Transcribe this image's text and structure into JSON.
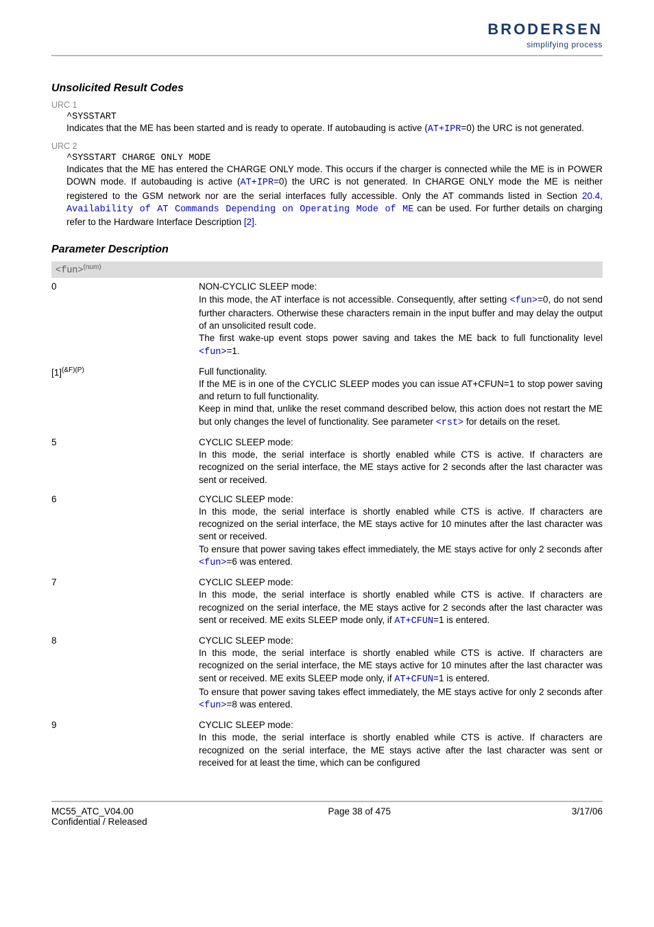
{
  "header": {
    "logo_main": "BRODERSEN",
    "logo_sub": "simplifying process"
  },
  "section_urc_title": "Unsolicited Result Codes",
  "urc1": {
    "label": "URC 1",
    "code": "^SYSSTART",
    "desc_pre": "Indicates that the ME has been started and is ready to operate. If autobauding is active (",
    "link": "AT+IPR",
    "desc_post": "=0) the URC is not generated."
  },
  "urc2": {
    "label": "URC 2",
    "code": "^SYSSTART CHARGE ONLY MODE",
    "p1_a": "Indicates that the ME has entered the CHARGE ONLY mode. This occurs if the charger is connected while the ME is in POWER DOWN mode. If autobauding is active (",
    "p1_link1": "AT+IPR",
    "p1_b": "=0) the URC is not generated. In CHARGE ONLY mode the ME is neither registered to the GSM network nor are the serial interfaces fully accessible. Only the AT commands listed in Section ",
    "p1_link2": "20.4",
    "p1_c": ", ",
    "p1_link3": "Availability of AT Commands Depending on Operating Mode of ME",
    "p1_d": " can be used. For further details on charging refer to the Hardware Interface Description ",
    "p1_link4": "[2]",
    "p1_e": "."
  },
  "section_param_title": "Parameter Description",
  "param_key": {
    "name": "<fun>",
    "sup": "(num)"
  },
  "rows": [
    {
      "left": "0",
      "parts": [
        {
          "t": "NON-CYCLIC SLEEP mode:"
        },
        {
          "br": true
        },
        {
          "t": "In this mode, the AT interface is not accessible. Consequently, after setting "
        },
        {
          "ml": "<fun>"
        },
        {
          "t": "=0, do not send further characters. Otherwise these characters remain in the input buffer and may delay the output of an unsolicited result code."
        },
        {
          "br": true
        },
        {
          "t": "The first wake-up event stops power saving and takes the ME back to full functionality level "
        },
        {
          "ml": "<fun>"
        },
        {
          "t": "=1."
        }
      ]
    },
    {
      "left": "[1]",
      "left_sup": "(&F)(P)",
      "parts": [
        {
          "t": "Full functionality."
        },
        {
          "br": true
        },
        {
          "t": "If the ME is in one of the CYCLIC SLEEP modes you can issue AT+CFUN=1 to stop power saving and return to full functionality."
        },
        {
          "br": true
        },
        {
          "t": "Keep in mind that, unlike the reset command described below, this action does not restart the ME but only changes the level of functionality. See parameter "
        },
        {
          "ml": "<rst>"
        },
        {
          "t": " for details on the reset."
        }
      ]
    },
    {
      "left": "5",
      "parts": [
        {
          "t": "CYCLIC SLEEP mode:"
        },
        {
          "br": true
        },
        {
          "t": "In this mode, the serial interface is shortly enabled while CTS is active. If characters are recognized on the serial interface, the ME stays active for 2 seconds after the last character was sent or received."
        }
      ]
    },
    {
      "left": "6",
      "parts": [
        {
          "t": "CYCLIC SLEEP mode:"
        },
        {
          "br": true
        },
        {
          "t": "In this mode, the serial interface is shortly enabled while CTS is active. If characters are recognized on the serial interface, the ME stays active for 10 minutes after the last character was sent or received."
        },
        {
          "br": true
        },
        {
          "t": "To ensure that power saving takes effect immediately, the ME stays active for only 2 seconds after "
        },
        {
          "ml": "<fun>"
        },
        {
          "t": "=6 was entered."
        }
      ]
    },
    {
      "left": "7",
      "parts": [
        {
          "t": "CYCLIC SLEEP mode:"
        },
        {
          "br": true
        },
        {
          "t": "In this mode, the serial interface is shortly enabled while CTS is active. If characters are recognized on the serial interface, the ME stays active for 2 seconds after the last character was sent or received. ME exits SLEEP mode only, if "
        },
        {
          "ml": "AT+CFUN"
        },
        {
          "t": "=1 is entered."
        }
      ]
    },
    {
      "left": "8",
      "parts": [
        {
          "t": "CYCLIC SLEEP mode:"
        },
        {
          "br": true
        },
        {
          "t": "In this mode, the serial interface is shortly enabled while CTS is active. If characters are recognized on the serial interface, the ME stays active for 10 minutes after the last character was sent or received. ME exits SLEEP mode only, if "
        },
        {
          "ml": "AT+CFUN"
        },
        {
          "t": "=1 is entered."
        },
        {
          "br": true
        },
        {
          "t": "To ensure that power saving takes effect immediately, the ME stays active for only 2 seconds after "
        },
        {
          "ml": "<fun>"
        },
        {
          "t": "=8 was entered."
        }
      ]
    },
    {
      "left": "9",
      "parts": [
        {
          "t": "CYCLIC SLEEP mode:"
        },
        {
          "br": true
        },
        {
          "t": "In this mode, the serial interface is shortly enabled while CTS is active. If characters are recognized on the serial interface, the ME stays active after the last character was sent or received for at least the time, which can be configured"
        }
      ]
    }
  ],
  "footer": {
    "left1": "MC55_ATC_V04.00",
    "left2": "Confidential / Released",
    "center": "Page 38 of 475",
    "right": "3/17/06"
  }
}
